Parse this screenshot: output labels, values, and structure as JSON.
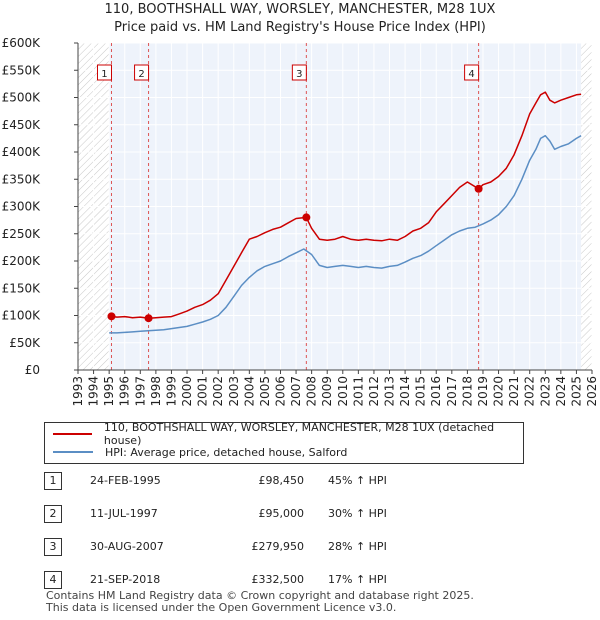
{
  "chart_data": {
    "type": "line",
    "title": "110, BOOTHSHALL WAY, WORSLEY, MANCHESTER, M28 1UX",
    "subtitle": "Price paid vs. HM Land Registry's House Price Index (HPI)",
    "xlim": [
      1993,
      2026
    ],
    "ylim": [
      0,
      600000
    ],
    "x_ticks": [
      "1993",
      "1994",
      "1995",
      "1996",
      "1997",
      "1998",
      "1999",
      "2000",
      "2001",
      "2002",
      "2003",
      "2004",
      "2005",
      "2006",
      "2007",
      "2008",
      "2009",
      "2010",
      "2011",
      "2012",
      "2013",
      "2014",
      "2015",
      "2016",
      "2017",
      "2018",
      "2019",
      "2020",
      "2021",
      "2022",
      "2023",
      "2024",
      "2025",
      "2026"
    ],
    "y_ticks": [
      {
        "value": 0,
        "label": "£0"
      },
      {
        "value": 50000,
        "label": "£50K"
      },
      {
        "value": 100000,
        "label": "£100K"
      },
      {
        "value": 150000,
        "label": "£150K"
      },
      {
        "value": 200000,
        "label": "£200K"
      },
      {
        "value": 250000,
        "label": "£250K"
      },
      {
        "value": 300000,
        "label": "£300K"
      },
      {
        "value": 350000,
        "label": "£350K"
      },
      {
        "value": 400000,
        "label": "£400K"
      },
      {
        "value": 450000,
        "label": "£450K"
      },
      {
        "value": 500000,
        "label": "£500K"
      },
      {
        "value": 550000,
        "label": "£550K"
      },
      {
        "value": 600000,
        "label": "£600K"
      }
    ],
    "data_end": 2025.3,
    "series": [
      {
        "name": "110, BOOTHSHALL WAY, WORSLEY, MANCHESTER, M28 1UX (detached house)",
        "color": "#cc0000",
        "x": [
          1995.15,
          1995.5,
          1996.0,
          1996.5,
          1997.0,
          1997.53,
          1998.0,
          1998.5,
          1999.0,
          1999.5,
          2000.0,
          2000.5,
          2001.0,
          2001.5,
          2002.0,
          2002.5,
          2003.0,
          2003.5,
          2004.0,
          2004.5,
          2005.0,
          2005.5,
          2006.0,
          2006.5,
          2007.0,
          2007.66,
          2008.0,
          2008.5,
          2009.0,
          2009.5,
          2010.0,
          2010.5,
          2011.0,
          2011.5,
          2012.0,
          2012.5,
          2013.0,
          2013.5,
          2014.0,
          2014.5,
          2015.0,
          2015.5,
          2016.0,
          2016.5,
          2017.0,
          2017.5,
          2018.0,
          2018.72,
          2019.0,
          2019.5,
          2020.0,
          2020.5,
          2021.0,
          2021.5,
          2022.0,
          2022.4,
          2022.7,
          2023.0,
          2023.3,
          2023.6,
          2024.0,
          2024.5,
          2025.0,
          2025.3
        ],
        "values": [
          98450,
          97000,
          98000,
          96000,
          97000,
          95000,
          96000,
          97000,
          98000,
          103000,
          108000,
          115000,
          120000,
          128000,
          140000,
          165000,
          190000,
          215000,
          240000,
          245000,
          252000,
          258000,
          262000,
          270000,
          278000,
          279950,
          260000,
          240000,
          238000,
          240000,
          245000,
          240000,
          238000,
          240000,
          238000,
          237000,
          240000,
          238000,
          245000,
          255000,
          260000,
          270000,
          290000,
          305000,
          320000,
          335000,
          345000,
          332500,
          340000,
          345000,
          355000,
          370000,
          395000,
          430000,
          470000,
          490000,
          505000,
          510000,
          495000,
          490000,
          495000,
          500000,
          505000,
          506000
        ]
      },
      {
        "name": "HPI: Average price, detached house, Salford",
        "color": "#5b8ec4",
        "x": [
          1995.0,
          1995.5,
          1996.0,
          1996.5,
          1997.0,
          1997.5,
          1998.0,
          1998.5,
          1999.0,
          1999.5,
          2000.0,
          2000.5,
          2001.0,
          2001.5,
          2002.0,
          2002.5,
          2003.0,
          2003.5,
          2004.0,
          2004.5,
          2005.0,
          2005.5,
          2006.0,
          2006.5,
          2007.0,
          2007.5,
          2008.0,
          2008.5,
          2009.0,
          2009.5,
          2010.0,
          2010.5,
          2011.0,
          2011.5,
          2012.0,
          2012.5,
          2013.0,
          2013.5,
          2014.0,
          2014.5,
          2015.0,
          2015.5,
          2016.0,
          2016.5,
          2017.0,
          2017.5,
          2018.0,
          2018.5,
          2019.0,
          2019.5,
          2020.0,
          2020.5,
          2021.0,
          2021.5,
          2022.0,
          2022.4,
          2022.7,
          2023.0,
          2023.3,
          2023.6,
          2024.0,
          2024.5,
          2025.0,
          2025.3
        ],
        "values": [
          68000,
          68000,
          69000,
          70000,
          71000,
          72000,
          73000,
          74000,
          76000,
          78000,
          80000,
          84000,
          88000,
          93000,
          100000,
          115000,
          135000,
          155000,
          170000,
          182000,
          190000,
          195000,
          200000,
          208000,
          215000,
          222000,
          212000,
          192000,
          188000,
          190000,
          192000,
          190000,
          188000,
          190000,
          188000,
          187000,
          190000,
          192000,
          198000,
          205000,
          210000,
          218000,
          228000,
          238000,
          248000,
          255000,
          260000,
          262000,
          268000,
          275000,
          285000,
          300000,
          320000,
          350000,
          385000,
          405000,
          425000,
          430000,
          420000,
          405000,
          410000,
          415000,
          425000,
          430000
        ]
      }
    ],
    "sales": [
      {
        "id": "1",
        "x": 1995.15,
        "value": 98450
      },
      {
        "id": "2",
        "x": 1997.53,
        "value": 95000
      },
      {
        "id": "3",
        "x": 2007.66,
        "value": 279950
      },
      {
        "id": "4",
        "x": 2018.72,
        "value": 332500
      }
    ]
  },
  "legend": {
    "property_label": "110, BOOTHSHALL WAY, WORSLEY, MANCHESTER, M28 1UX (detached house)",
    "hpi_label": "HPI: Average price, detached house, Salford"
  },
  "transactions": [
    {
      "num": "1",
      "date": "24-FEB-1995",
      "price": "£98,450",
      "hpi": "45% ↑ HPI"
    },
    {
      "num": "2",
      "date": "11-JUL-1997",
      "price": "£95,000",
      "hpi": "30% ↑ HPI"
    },
    {
      "num": "3",
      "date": "30-AUG-2007",
      "price": "£279,950",
      "hpi": "28% ↑ HPI"
    },
    {
      "num": "4",
      "date": "21-SEP-2018",
      "price": "£332,500",
      "hpi": "17% ↑ HPI"
    }
  ],
  "footer": {
    "line1": "Contains HM Land Registry data © Crown copyright and database right 2025.",
    "line2": "This data is licensed under the Open Government Licence v3.0."
  }
}
